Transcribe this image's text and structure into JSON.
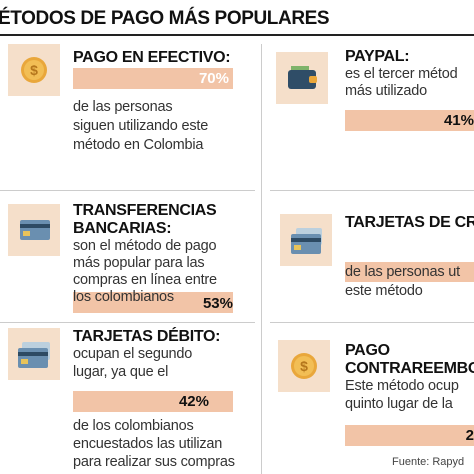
{
  "header": {
    "title": "ÉTODOS DE PAGO MÁS POPULARES"
  },
  "items": [
    {
      "heading": [
        "PAGO EN EFECTIVO:"
      ],
      "percent": "70%",
      "after": [
        "de las personas",
        "siguen utilizando este",
        "método en Colombia"
      ]
    },
    {
      "heading": [
        "TRANSFERENCIAS",
        "BANCARIAS:"
      ],
      "before": [
        "son el método de pago",
        "más popular para las",
        "compras en línea entre",
        "los colombianos"
      ],
      "percent": "53%"
    },
    {
      "heading": [
        "TARJETAS DÉBITO:"
      ],
      "before": [
        "ocupan el segundo",
        "lugar, ya que el"
      ],
      "percent": "42%",
      "after": [
        "de los colombianos",
        "encuestados las utilizan",
        "para realizar sus compras"
      ]
    },
    {
      "heading": [
        "PAYPAL:"
      ],
      "before": [
        "es el tercer métod",
        "más utilizado"
      ],
      "percent": "41%"
    },
    {
      "heading": [
        "TARJETAS DE CR"
      ],
      "after": [
        "de las personas ut",
        "este método"
      ]
    },
    {
      "heading": [
        "PAGO",
        "CONTRAREEMBO"
      ],
      "before": [
        "Este método ocup",
        "quinto lugar de la"
      ],
      "percent": "2"
    }
  ],
  "footer": {
    "source": "Fuente: Rapyd"
  }
}
